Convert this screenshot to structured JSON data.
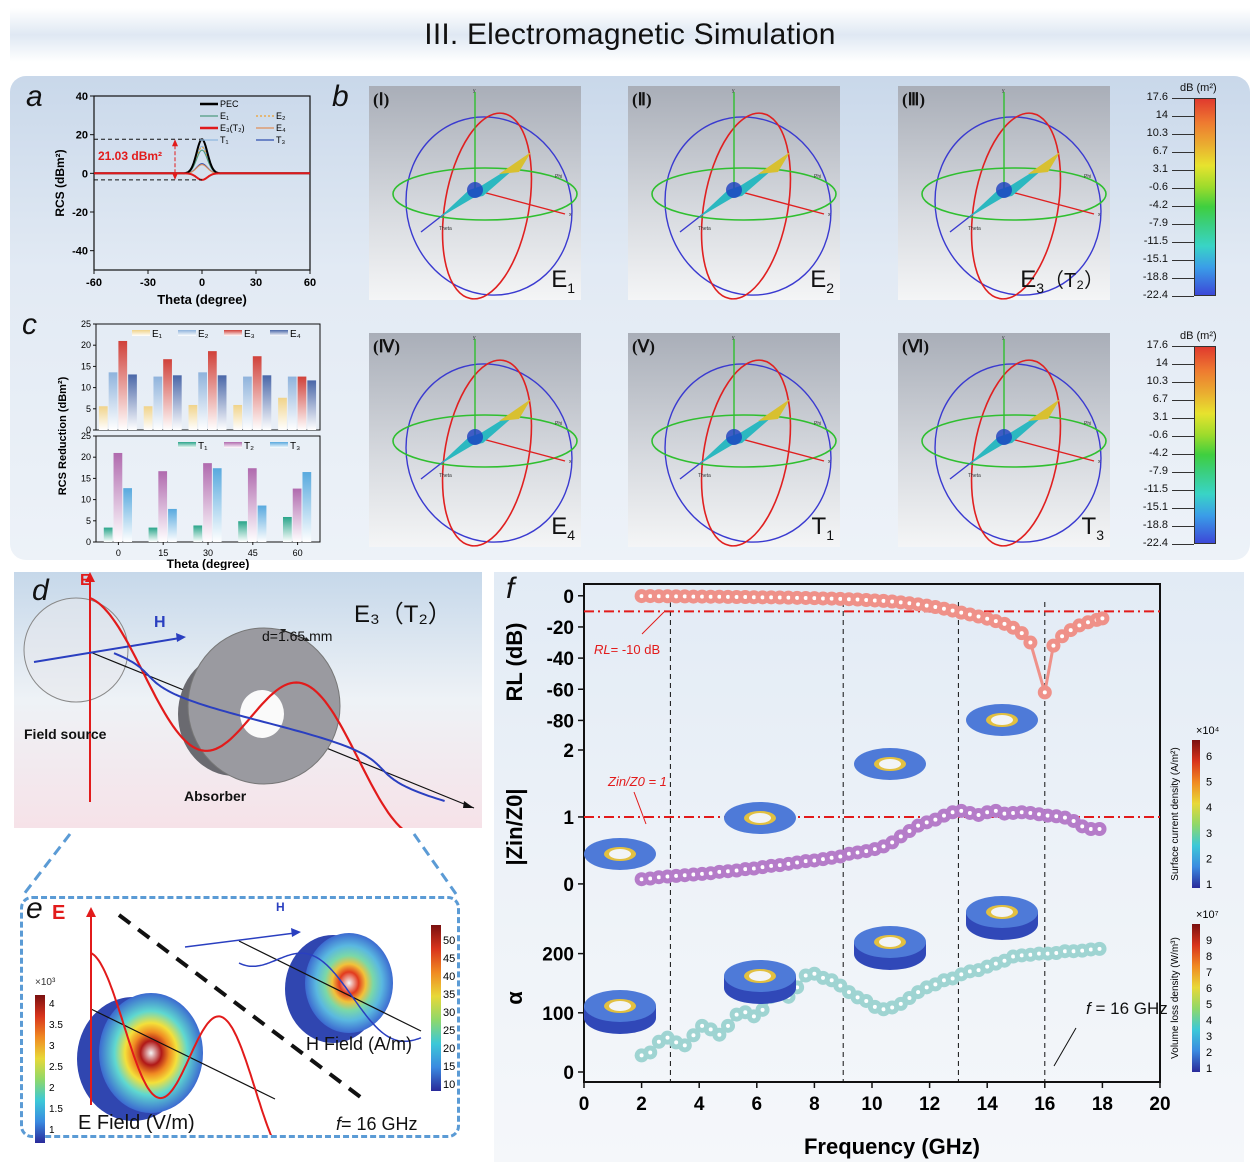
{
  "header": {
    "title": "III. Electromagnetic Simulation"
  },
  "panels": {
    "a": "a",
    "b": "b",
    "c": "c",
    "d": "d",
    "e": "e",
    "f": "f"
  },
  "panel_b": {
    "patterns": [
      {
        "roman": "(Ⅰ)",
        "tag": "E",
        "sub": "1",
        "extra": ""
      },
      {
        "roman": "(Ⅱ)",
        "tag": "E",
        "sub": "2",
        "extra": ""
      },
      {
        "roman": "(Ⅲ)",
        "tag": "E",
        "sub": "3",
        "extra": "（T₂）"
      },
      {
        "roman": "(Ⅳ)",
        "tag": "E",
        "sub": "4",
        "extra": ""
      },
      {
        "roman": "(Ⅴ)",
        "tag": "T",
        "sub": "1",
        "extra": ""
      },
      {
        "roman": "(Ⅵ)",
        "tag": "T",
        "sub": "3",
        "extra": ""
      }
    ],
    "axis_labels": {
      "x": "x",
      "y": "y",
      "z": "z",
      "theta": "Theta",
      "phi": "Phi"
    },
    "colorbar": {
      "unit": "dB (m²)",
      "ticks": [
        "17.6",
        "14",
        "10.3",
        "6.7",
        "3.1",
        "-0.6",
        "-4.2",
        "-7.9",
        "-11.5",
        "-15.1",
        "-18.8",
        "-22.4"
      ]
    }
  },
  "panel_d": {
    "title": "E₃（T₂）",
    "e_label": "E",
    "h_label": "H",
    "thickness": "d=1.65 mm",
    "field_source": "Field source",
    "absorber": "Absorber"
  },
  "panel_e": {
    "e_label": "E",
    "h_label": "H",
    "e_field": "E Field (V/m)",
    "h_field": "H Field (A/m)",
    "freq": "= 16 GHz",
    "freq_f": "f",
    "e_cbar": {
      "multiplier": "×10³",
      "ticks": [
        "4",
        "3.5",
        "3",
        "2.5",
        "2",
        "1.5",
        "1"
      ]
    },
    "h_cbar": {
      "ticks": [
        "50",
        "45",
        "40",
        "35",
        "30",
        "25",
        "20",
        "15",
        "10"
      ]
    }
  },
  "chart_data": [
    {
      "id": "a",
      "type": "line",
      "xlabel": "Theta (degree)",
      "ylabel": "RCS (dBm²)",
      "xlim": [
        -60,
        60
      ],
      "ylim": [
        -50,
        40
      ],
      "xticks": [
        -60,
        -30,
        0,
        30,
        60
      ],
      "yticks": [
        -40,
        -20,
        0,
        20,
        40
      ],
      "annotation": "21.03 dBm²",
      "annotation_levels": [
        17.6,
        -3.4
      ],
      "series": [
        {
          "name": "PEC",
          "color": "#000000",
          "peak": 17.6,
          "floor": -14,
          "lobe_amp": 8
        },
        {
          "name": "E1",
          "color": "#4f9a80",
          "peak": 12,
          "floor": -22,
          "lobe_amp": 9
        },
        {
          "name": "E2",
          "color": "#f0a030",
          "peak": 13.5,
          "floor": -20,
          "lobe_amp": 6,
          "dashed": true
        },
        {
          "name": "E3(T2)",
          "color": "#e0191b",
          "peak": -3.4,
          "floor": -26,
          "lobe_amp": 6
        },
        {
          "name": "E4",
          "color": "#e0905a",
          "peak": 4.5,
          "floor": -22,
          "lobe_amp": 4
        },
        {
          "name": "T1",
          "color": "#90b8e0",
          "peak": 14,
          "floor": -18,
          "lobe_amp": 6
        },
        {
          "name": "T3",
          "color": "#3050b0",
          "peak": 5,
          "floor": -24,
          "lobe_amp": 9
        }
      ],
      "legend": [
        "PEC",
        "E₁",
        "E₂",
        "E₃(T₂)",
        "E₄",
        "T₁",
        "T₃"
      ],
      "legend_position": "top-right"
    },
    {
      "id": "c-top",
      "type": "bar",
      "categories": [
        "0",
        "15",
        "30",
        "45",
        "60"
      ],
      "ylim": [
        0,
        25
      ],
      "yticks": [
        0,
        5,
        10,
        15,
        20,
        25
      ],
      "series": [
        {
          "name": "E₁",
          "color": "#f0d38a",
          "values": [
            5.6,
            5.6,
            5.9,
            5.9,
            7.6
          ]
        },
        {
          "name": "E₂",
          "color": "#8fb3dc",
          "values": [
            13.6,
            12.6,
            13.6,
            12.6,
            12.6
          ]
        },
        {
          "name": "E₃",
          "color": "#d0413a",
          "values": [
            21.0,
            16.7,
            18.6,
            17.4,
            12.6
          ]
        },
        {
          "name": "E₄",
          "color": "#4a67a8",
          "values": [
            13.1,
            12.9,
            12.9,
            12.9,
            11.7
          ]
        }
      ],
      "legend_position": "top-right"
    },
    {
      "id": "c-bottom",
      "type": "bar",
      "categories": [
        "0",
        "15",
        "30",
        "45",
        "60"
      ],
      "ylim": [
        0,
        25
      ],
      "yticks": [
        0,
        5,
        10,
        15,
        20,
        25
      ],
      "xlabel": "Theta (degree)",
      "ylabel": "RCS Reduction (dBm²)",
      "series": [
        {
          "name": "T₁",
          "color": "#2aa58a",
          "values": [
            3.4,
            3.4,
            3.9,
            4.9,
            5.9
          ]
        },
        {
          "name": "T₂",
          "color": "#b06aae",
          "values": [
            21.0,
            16.7,
            18.6,
            17.4,
            12.6
          ]
        },
        {
          "name": "T₃",
          "color": "#58a9de",
          "values": [
            12.7,
            7.8,
            17.4,
            8.6,
            16.5
          ]
        }
      ],
      "legend_position": "top-right"
    },
    {
      "id": "f",
      "type": "scatter",
      "xlabel": "Frequency (GHz)",
      "xlim": [
        0,
        20
      ],
      "xticks": [
        0,
        2,
        4,
        6,
        8,
        10,
        12,
        14,
        16,
        18,
        20
      ],
      "vlines": [
        3,
        9,
        13,
        16
      ],
      "subplots": [
        {
          "ylabel": "RL (dB)",
          "ylim": [
            -90,
            5
          ],
          "yticks": [
            0,
            -20,
            -40,
            -60,
            -80
          ],
          "color": "#ef9189",
          "hline": -10,
          "hline_label": "= -10 dB",
          "hline_label_italic": "RL",
          "x": [
            2.0,
            2.3,
            2.6,
            2.9,
            3.2,
            3.5,
            3.8,
            4.1,
            4.4,
            4.7,
            5.0,
            5.3,
            5.6,
            5.9,
            6.2,
            6.5,
            6.8,
            7.1,
            7.4,
            7.7,
            8.0,
            8.3,
            8.6,
            8.9,
            9.2,
            9.5,
            9.8,
            10.1,
            10.4,
            10.7,
            11.0,
            11.3,
            11.6,
            11.9,
            12.2,
            12.5,
            12.8,
            13.1,
            13.4,
            13.7,
            14.0,
            14.3,
            14.6,
            14.9,
            15.2,
            15.5,
            16.0,
            16.3,
            16.6,
            16.9,
            17.2,
            17.5,
            17.8,
            18.0
          ],
          "y": [
            -0.2,
            -0.2,
            -0.3,
            -0.3,
            -0.4,
            -0.4,
            -0.5,
            -0.5,
            -0.6,
            -0.6,
            -0.7,
            -0.8,
            -0.8,
            -0.9,
            -1.0,
            -1.0,
            -1.1,
            -1.2,
            -1.3,
            -1.4,
            -1.5,
            -1.7,
            -1.8,
            -2.0,
            -2.2,
            -2.4,
            -2.7,
            -3.0,
            -3.3,
            -3.7,
            -4.2,
            -4.8,
            -5.5,
            -6.3,
            -7.2,
            -8.3,
            -9.5,
            -10.8,
            -12.0,
            -13.3,
            -14.7,
            -16.3,
            -18.0,
            -20.5,
            -24.0,
            -30.0,
            -62.0,
            -32.0,
            -26.0,
            -22.0,
            -19.0,
            -17.0,
            -15.5,
            -14.5
          ]
        },
        {
          "ylabel": "|Zin/Z0|",
          "ylim": [
            -0.3,
            2
          ],
          "yticks": [
            0,
            1,
            2
          ],
          "color": "#b57cc9",
          "hline": 1,
          "hline_label": "Z_in/Z_0 = 1",
          "x": [
            2.0,
            2.3,
            2.6,
            2.9,
            3.2,
            3.5,
            3.8,
            4.1,
            4.4,
            4.7,
            5.0,
            5.3,
            5.6,
            5.9,
            6.2,
            6.5,
            6.8,
            7.1,
            7.4,
            7.7,
            8.0,
            8.3,
            8.6,
            8.9,
            9.2,
            9.5,
            9.8,
            10.1,
            10.4,
            10.7,
            11.0,
            11.3,
            11.6,
            11.9,
            12.2,
            12.5,
            12.8,
            13.1,
            13.4,
            13.7,
            14.0,
            14.3,
            14.6,
            14.9,
            15.2,
            15.5,
            15.8,
            16.1,
            16.4,
            16.7,
            17.0,
            17.3,
            17.6,
            17.9
          ],
          "y": [
            0.07,
            0.08,
            0.1,
            0.11,
            0.12,
            0.13,
            0.14,
            0.15,
            0.16,
            0.18,
            0.19,
            0.2,
            0.22,
            0.23,
            0.25,
            0.27,
            0.28,
            0.3,
            0.32,
            0.34,
            0.35,
            0.37,
            0.39,
            0.41,
            0.45,
            0.47,
            0.49,
            0.52,
            0.56,
            0.62,
            0.71,
            0.79,
            0.87,
            0.92,
            0.96,
            1.02,
            1.07,
            1.09,
            1.06,
            1.03,
            1.07,
            1.09,
            1.05,
            1.06,
            1.07,
            1.06,
            1.04,
            1.02,
            1.01,
            0.99,
            0.94,
            0.86,
            0.82,
            0.82
          ]
        },
        {
          "ylabel": "α",
          "ylim": [
            0,
            250
          ],
          "yticks": [
            0,
            100,
            200
          ],
          "color": "#9fd4d2",
          "annotation": "= 16 GHz",
          "annotation_italic": "f",
          "x": [
            2.0,
            2.3,
            2.6,
            2.9,
            3.2,
            3.5,
            3.8,
            4.1,
            4.4,
            4.7,
            5.0,
            5.3,
            5.6,
            5.9,
            6.2,
            6.5,
            6.8,
            7.1,
            7.4,
            7.7,
            8.0,
            8.3,
            8.6,
            8.9,
            9.2,
            9.5,
            9.8,
            10.1,
            10.4,
            10.7,
            11.0,
            11.3,
            11.6,
            11.9,
            12.2,
            12.5,
            12.8,
            13.1,
            13.4,
            13.7,
            14.0,
            14.3,
            14.6,
            14.9,
            15.2,
            15.5,
            15.8,
            16.1,
            16.4,
            16.7,
            17.0,
            17.3,
            17.6,
            17.9
          ],
          "y": [
            28,
            33,
            51,
            58,
            50,
            45,
            62,
            78,
            72,
            63,
            78,
            97,
            101,
            94,
            105,
            127,
            132,
            127,
            143,
            163,
            166,
            159,
            155,
            146,
            135,
            126,
            120,
            110,
            106,
            109,
            115,
            125,
            135,
            143,
            148,
            155,
            158,
            165,
            170,
            172,
            178,
            183,
            188,
            195,
            197,
            198,
            200,
            200,
            201,
            204,
            204,
            205,
            207,
            208
          ]
        }
      ],
      "colorbars": [
        {
          "label": "Surface current density (A/m²)",
          "multiplier": "×10⁴",
          "ticks": [
            "6",
            "5",
            "4",
            "3",
            "2",
            "1"
          ]
        },
        {
          "label": "Volume loss density (W/m³)",
          "multiplier": "×10⁷",
          "ticks": [
            "9",
            "8",
            "7",
            "6",
            "5",
            "4",
            "3",
            "2",
            "1"
          ]
        }
      ]
    }
  ]
}
